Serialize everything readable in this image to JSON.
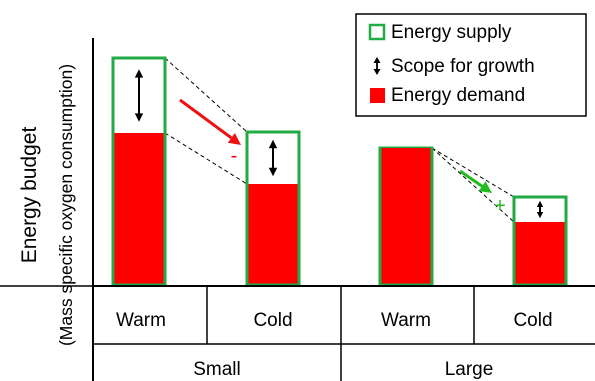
{
  "chart_data": {
    "type": "bar",
    "ylabel": "Energy budget",
    "ylabel_sub": "(Mass specific oxygen consumption)",
    "groups": [
      {
        "name": "Small",
        "categories": [
          "Warm",
          "Cold"
        ]
      },
      {
        "name": "Large",
        "categories": [
          "Warm",
          "Cold"
        ]
      }
    ],
    "series": [
      {
        "name": "Energy supply",
        "values": [
          227,
          153,
          137,
          88
        ]
      },
      {
        "name": "Energy demand",
        "values": [
          152,
          101,
          137,
          63
        ]
      }
    ],
    "legend": {
      "placement": "top-right",
      "items": [
        {
          "label": "Energy supply",
          "symbol": "open-square"
        },
        {
          "label": "Scope for growth",
          "symbol": "double-arrow"
        },
        {
          "label": "Energy demand",
          "symbol": "filled-square"
        }
      ]
    },
    "annotations": [
      {
        "text": "-",
        "between": [
          "Small Warm",
          "Small Cold"
        ],
        "color": "#ff0000"
      },
      {
        "text": "+",
        "between": [
          "Large Warm",
          "Large Cold"
        ],
        "color": "#22bb22"
      }
    ],
    "colors": {
      "supply_outline": "#22aa44",
      "demand_fill": "#ff0000",
      "decrease_arrow": "#ee1111",
      "increase_arrow": "#22bb22"
    }
  }
}
